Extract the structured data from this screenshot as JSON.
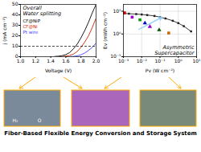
{
  "title": "Fiber-Based Flexible Energy Conversion and Storage System",
  "annotations": [
    "H₂",
    "O"
  ],
  "chart_data": [
    {
      "type": "line",
      "title": "Overall\nWater splitting",
      "xlabel": "Voltage (V)",
      "ylabel": "j (mA cm⁻²)",
      "xlim": [
        1.0,
        2.0
      ],
      "ylim": [
        0,
        50
      ],
      "xticks": [
        {
          "value": 1.0,
          "label": "1.0"
        },
        {
          "value": 1.2,
          "label": "1.2"
        },
        {
          "value": 1.4,
          "label": "1.4"
        },
        {
          "value": 1.6,
          "label": "1.6"
        },
        {
          "value": 1.8,
          "label": "1.8"
        },
        {
          "value": 2.0,
          "label": "2.0"
        }
      ],
      "yticks": [
        0,
        10,
        20,
        30,
        40,
        50
      ],
      "legend": "upper left",
      "hline": {
        "y": 10,
        "line_style": "dashed",
        "color": "#000000"
      },
      "series": [
        {
          "name": "CF@NiP",
          "color": "#000000",
          "x": [
            1.45,
            1.5,
            1.55,
            1.6,
            1.65,
            1.7,
            1.75,
            1.8,
            1.85,
            1.9,
            1.95,
            2.0
          ],
          "values": [
            0.2,
            0.5,
            1.0,
            2.0,
            4.0,
            7.5,
            12,
            18,
            25,
            33,
            42,
            50
          ]
        },
        {
          "name": "CF@Ni",
          "color": "#cc2200",
          "x": [
            1.55,
            1.6,
            1.65,
            1.7,
            1.75,
            1.8,
            1.85,
            1.9,
            1.95,
            2.0
          ],
          "values": [
            0.2,
            0.5,
            1.2,
            2.5,
            5,
            9,
            14,
            20,
            28,
            37
          ]
        },
        {
          "name": "Pt wire",
          "color": "#4444ff",
          "x": [
            1.65,
            1.7,
            1.75,
            1.8,
            1.85,
            1.9,
            1.95,
            2.0
          ],
          "values": [
            0.1,
            0.3,
            0.8,
            1.8,
            3.5,
            6,
            9,
            13
          ]
        }
      ]
    },
    {
      "type": "line",
      "title": "Asymmetric\nSupercapacitor",
      "xlabel": "Pv (W cm⁻²)",
      "ylabel": "Ev (mWh cm⁻²)",
      "log": true,
      "grid": true,
      "xlim": [
        0.001,
        10
      ],
      "ylim": [
        0.1,
        19.952623149688797
      ],
      "xticks": [
        {
          "value": 0.001,
          "label": "10⁻³"
        },
        {
          "value": 0.01,
          "label": "10⁻²"
        },
        {
          "value": 0.1,
          "label": "10⁻¹"
        },
        {
          "value": 1,
          "label": "10⁰"
        },
        {
          "value": 10,
          "label": "10¹"
        }
      ],
      "yticks": [
        {
          "value": 0.1,
          "label": "10⁻¹"
        },
        {
          "value": 1,
          "label": "10⁰"
        },
        {
          "value": 10,
          "label": "10¹"
        }
      ],
      "arrows": [
        {
          "x1": 0.007,
          "y1": 1.6,
          "x2": 0.13,
          "y2": 5.5,
          "color": "#88ccff"
        }
      ],
      "series": [
        {
          "color": "#222222",
          "marker": "square",
          "x": [
            0.001,
            0.002,
            0.005,
            0.01,
            0.02,
            0.05,
            0.1,
            0.2,
            0.5,
            1.0,
            2.0,
            5.0
          ],
          "values": [
            8.0,
            7.8,
            7.5,
            7.2,
            6.8,
            6.2,
            5.5,
            4.8,
            3.8,
            3.0,
            2.2,
            1.3
          ]
        },
        {
          "type": "scatter",
          "color": "#cc0000",
          "marker": "square",
          "x": [
            0.00115
          ],
          "values": [
            8.5
          ]
        },
        {
          "type": "scatter",
          "color": "#9900cc",
          "marker": "square",
          "x": [
            0.003
          ],
          "values": [
            5.5
          ]
        },
        {
          "type": "scatter",
          "color": "#009900",
          "marker": "square",
          "x": [
            0.008
          ],
          "values": [
            4.2
          ]
        },
        {
          "type": "scatter",
          "color": "#0000cc",
          "marker": "triangle",
          "x": [
            0.015
          ],
          "values": [
            3.0
          ]
        },
        {
          "type": "scatter",
          "color": "#9900cc",
          "marker": "triangle",
          "x": [
            0.028
          ],
          "values": [
            2.1
          ]
        },
        {
          "type": "scatter",
          "color": "#005500",
          "marker": "triangle",
          "x": [
            0.09
          ],
          "values": [
            1.5
          ]
        },
        {
          "type": "scatter",
          "color": "#cc6600",
          "marker": "square",
          "x": [
            0.3
          ],
          "values": [
            1.1
          ]
        }
      ]
    }
  ]
}
